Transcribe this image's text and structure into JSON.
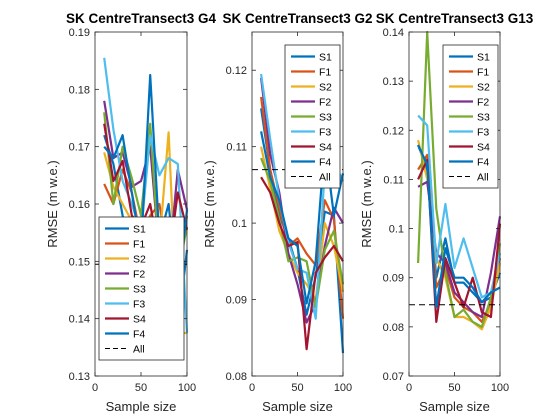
{
  "chart_data": [
    {
      "type": "line",
      "title": "SK CentreTransect3 G4",
      "xlabel": "Sample size",
      "ylabel": "RMSE (m w.e.)",
      "xlim": [
        0,
        100
      ],
      "ylim": [
        0.13,
        0.19
      ],
      "xticks": [
        0,
        50,
        100
      ],
      "yticks": [
        0.13,
        0.14,
        0.15,
        0.16,
        0.17,
        0.18,
        0.19
      ],
      "ytick_labels": [
        "0.13",
        "0.14",
        "0.15",
        "0.16",
        "0.17",
        "0.18",
        "0.19"
      ],
      "grid": false,
      "legend_position": "bottom-right",
      "x": [
        10,
        20,
        30,
        40,
        50,
        60,
        70,
        80,
        90,
        100
      ],
      "all_value": 0.1495,
      "series": [
        {
          "name": "S1",
          "color": "#0072BD",
          "values": [
            0.172,
            0.167,
            0.158,
            0.152,
            0.148,
            0.156,
            0.151,
            0.145,
            0.138,
            0.152
          ]
        },
        {
          "name": "F1",
          "color": "#D95319",
          "values": [
            0.1635,
            0.16,
            0.166,
            0.162,
            0.154,
            0.158,
            0.16,
            0.15,
            0.146,
            0.158
          ]
        },
        {
          "name": "S2",
          "color": "#EDB120",
          "values": [
            0.169,
            0.163,
            0.16,
            0.157,
            0.15,
            0.151,
            0.153,
            0.1725,
            0.1375,
            0.1375
          ]
        },
        {
          "name": "F2",
          "color": "#7E2F8E",
          "values": [
            0.178,
            0.168,
            0.169,
            0.163,
            0.164,
            0.17,
            0.151,
            0.149,
            0.166,
            0.159
          ]
        },
        {
          "name": "S3",
          "color": "#77AC30",
          "values": [
            0.176,
            0.16,
            0.17,
            0.1645,
            0.158,
            0.174,
            0.15,
            0.156,
            0.148,
            0.156
          ]
        },
        {
          "name": "F3",
          "color": "#4DBEEE",
          "values": [
            0.1855,
            0.173,
            0.164,
            0.16,
            0.155,
            0.172,
            0.165,
            0.168,
            0.167,
            0.1375
          ]
        },
        {
          "name": "S4",
          "color": "#A2142F",
          "values": [
            0.174,
            0.164,
            0.1675,
            0.158,
            0.156,
            0.16,
            0.151,
            0.15,
            0.162,
            0.1555
          ]
        },
        {
          "name": "F4",
          "color": "#0072BD",
          "values": [
            0.17,
            0.168,
            0.172,
            0.162,
            0.152,
            0.1825,
            0.154,
            0.16,
            0.1445,
            0.159
          ]
        }
      ]
    },
    {
      "type": "line",
      "title": "SK CentreTransect3 G2",
      "xlabel": "Sample size",
      "ylabel": "RMSE (m w.e.)",
      "xlim": [
        0,
        100
      ],
      "ylim": [
        0.08,
        0.125
      ],
      "xticks": [
        0,
        50,
        100
      ],
      "yticks": [
        0.08,
        0.09,
        0.1,
        0.11,
        0.12
      ],
      "ytick_labels": [
        "0.08",
        "0.09",
        "0.1",
        "0.11",
        "0.12"
      ],
      "grid": false,
      "legend_position": "top-right",
      "x": [
        10,
        20,
        30,
        40,
        50,
        60,
        70,
        80,
        90,
        100
      ],
      "all_value": 0.107,
      "series": [
        {
          "name": "S1",
          "color": "#0072BD",
          "values": [
            0.115,
            0.107,
            0.101,
            0.098,
            0.094,
            0.088,
            0.093,
            0.1015,
            0.101,
            0.083
          ]
        },
        {
          "name": "F1",
          "color": "#D95319",
          "values": [
            0.1165,
            0.107,
            0.102,
            0.097,
            0.098,
            0.096,
            0.0945,
            0.103,
            0.1005,
            0.0875
          ]
        },
        {
          "name": "S2",
          "color": "#EDB120",
          "values": [
            0.11,
            0.1045,
            0.099,
            0.096,
            0.0935,
            0.092,
            0.09,
            0.1,
            0.097,
            0.091
          ]
        },
        {
          "name": "F2",
          "color": "#7E2F8E",
          "values": [
            0.119,
            0.109,
            0.104,
            0.096,
            0.092,
            0.087,
            0.0895,
            0.097,
            0.102,
            0.1
          ]
        },
        {
          "name": "S3",
          "color": "#77AC30",
          "values": [
            0.1085,
            0.1055,
            0.1005,
            0.095,
            0.0955,
            0.095,
            0.089,
            0.0965,
            0.099,
            0.092
          ]
        },
        {
          "name": "F3",
          "color": "#4DBEEE",
          "values": [
            0.1195,
            0.111,
            0.103,
            0.0975,
            0.094,
            0.0935,
            0.0875,
            0.107,
            0.108,
            0.1055
          ]
        },
        {
          "name": "S4",
          "color": "#A2142F",
          "values": [
            0.106,
            0.104,
            0.1,
            0.097,
            0.0975,
            0.0835,
            0.0935,
            0.0955,
            0.097,
            0.095
          ]
        },
        {
          "name": "F4",
          "color": "#0072BD",
          "values": [
            0.112,
            0.106,
            0.103,
            0.098,
            0.097,
            0.0895,
            0.095,
            0.1105,
            0.101,
            0.1065
          ]
        }
      ]
    },
    {
      "type": "line",
      "title": "SK CentreTransect3 G13",
      "xlabel": "Sample size",
      "ylabel": "RMSE (m w.e.)",
      "xlim": [
        0,
        100
      ],
      "ylim": [
        0.07,
        0.14
      ],
      "xticks": [
        0,
        50,
        100
      ],
      "yticks": [
        0.07,
        0.08,
        0.09,
        0.1,
        0.11,
        0.12,
        0.13,
        0.14
      ],
      "ytick_labels": [
        "0.07",
        "0.08",
        "0.09",
        "0.1",
        "0.11",
        "0.12",
        "0.13",
        "0.14"
      ],
      "grid": false,
      "legend_position": "top-right",
      "x": [
        10,
        20,
        30,
        40,
        50,
        60,
        70,
        80,
        90,
        100
      ],
      "all_value": 0.0845,
      "series": [
        {
          "name": "S1",
          "color": "#0072BD",
          "values": [
            0.117,
            0.112,
            0.09,
            0.098,
            0.089,
            0.089,
            0.087,
            0.085,
            0.086,
            0.091
          ]
        },
        {
          "name": "F1",
          "color": "#D95319",
          "values": [
            0.112,
            0.115,
            0.088,
            0.092,
            0.086,
            0.084,
            0.083,
            0.081,
            0.085,
            0.094
          ]
        },
        {
          "name": "S2",
          "color": "#EDB120",
          "values": [
            0.118,
            0.11,
            0.094,
            0.09,
            0.082,
            0.082,
            0.081,
            0.0795,
            0.084,
            0.093
          ]
        },
        {
          "name": "F2",
          "color": "#7E2F8E",
          "values": [
            0.1085,
            0.1095,
            0.095,
            0.093,
            0.087,
            0.085,
            0.083,
            0.082,
            0.091,
            0.1025
          ]
        },
        {
          "name": "S3",
          "color": "#77AC30",
          "values": [
            0.093,
            0.14,
            0.104,
            0.091,
            0.082,
            0.0835,
            0.081,
            0.08,
            0.086,
            0.097
          ]
        },
        {
          "name": "F3",
          "color": "#4DBEEE",
          "values": [
            0.123,
            0.121,
            0.093,
            0.105,
            0.092,
            0.098,
            0.092,
            0.086,
            0.087,
            0.095
          ]
        },
        {
          "name": "S4",
          "color": "#A2142F",
          "values": [
            0.11,
            0.114,
            0.081,
            0.094,
            0.089,
            0.084,
            0.09,
            0.083,
            0.082,
            0.101
          ]
        },
        {
          "name": "F4",
          "color": "#0072BD",
          "values": [
            0.117,
            0.113,
            0.084,
            0.096,
            0.09,
            0.09,
            0.088,
            0.085,
            0.087,
            0.088
          ]
        }
      ]
    }
  ],
  "legend_all_label": "All"
}
